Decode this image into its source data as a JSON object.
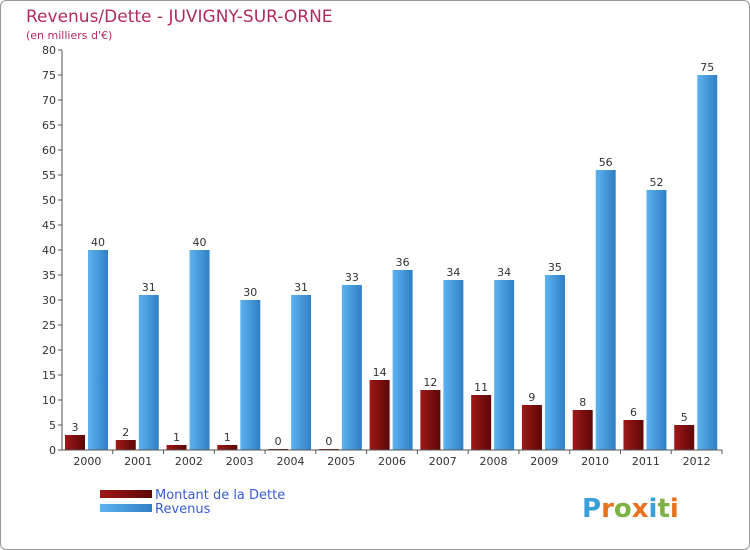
{
  "chart_data": {
    "type": "bar",
    "title": "Revenus/Dette - JUVIGNY-SUR-ORNE",
    "subtitle": "(en milliers d'€)",
    "categories": [
      "2000",
      "2001",
      "2002",
      "2003",
      "2004",
      "2005",
      "2006",
      "2007",
      "2008",
      "2009",
      "2010",
      "2011",
      "2012"
    ],
    "series": [
      {
        "name": "Montant de la Dette",
        "color": "#7a0d0d",
        "values": [
          3,
          2,
          1,
          1,
          0,
          0,
          14,
          12,
          11,
          9,
          8,
          6,
          5
        ]
      },
      {
        "name": "Revenus",
        "color": "#4aa3e8",
        "values": [
          40,
          31,
          40,
          30,
          31,
          33,
          36,
          34,
          34,
          35,
          56,
          52,
          75
        ]
      }
    ],
    "ylim": [
      0,
      80
    ],
    "yticks": [
      0,
      5,
      10,
      15,
      20,
      25,
      30,
      35,
      40,
      45,
      50,
      55,
      60,
      65,
      70,
      75,
      80
    ],
    "grid": false,
    "legend_position": "bottom-left"
  },
  "logo": {
    "text": "Proxiti",
    "letters": [
      "P",
      "r",
      "o",
      "x",
      "i",
      "t",
      "i"
    ],
    "colors": [
      "#3aa0d8",
      "#e8721e",
      "#7cb342",
      "#e8721e",
      "#3aa0d8",
      "#7cb342",
      "#e8721e"
    ]
  }
}
